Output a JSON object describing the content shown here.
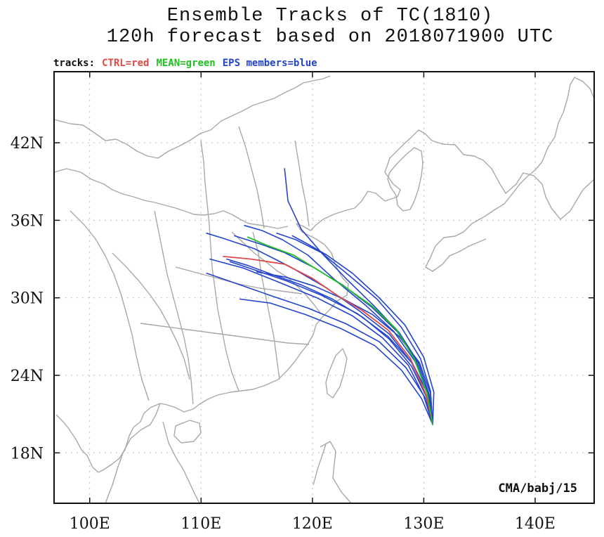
{
  "title_line1": "Ensemble Tracks of TC(1810)",
  "title_line2": "120h forecast based on 2018071900 UTC",
  "legend": {
    "label": "tracks:",
    "ctrl": "CTRL=red",
    "mean": "MEAN=green",
    "eps": "EPS members=blue"
  },
  "colors": {
    "ctrl": "#e04848",
    "mean": "#22c022",
    "eps": "#2244cc",
    "coast": "#a8a8a8",
    "grid": "#bbbbbb"
  },
  "credit": "CMA/babj/15",
  "map": {
    "lon_range": [
      96.8,
      145.3
    ],
    "lat_range": [
      14.1,
      47.5
    ],
    "lon_ticks": [
      100,
      110,
      120,
      130,
      140
    ],
    "lon_tick_labels": [
      "100E",
      "110E",
      "120E",
      "130E",
      "140E"
    ],
    "lat_ticks": [
      18,
      24,
      30,
      36,
      42
    ],
    "lat_tick_labels": [
      "18N",
      "24N",
      "30N",
      "36N",
      "42N"
    ]
  },
  "tracks": {
    "ctrl": [
      [
        130.8,
        20.2
      ],
      [
        130.2,
        22.5
      ],
      [
        128.8,
        25.3
      ],
      [
        126.8,
        27.5
      ],
      [
        124.5,
        29.0
      ],
      [
        122.2,
        30.2
      ],
      [
        120.0,
        31.5
      ],
      [
        117.5,
        32.6
      ],
      [
        114.5,
        33.0
      ],
      [
        112.0,
        33.2
      ]
    ],
    "mean": [
      [
        130.8,
        20.2
      ],
      [
        130.3,
        22.6
      ],
      [
        129.2,
        25.2
      ],
      [
        127.5,
        27.6
      ],
      [
        125.3,
        29.4
      ],
      [
        123.0,
        30.8
      ],
      [
        120.6,
        32.1
      ],
      [
        118.3,
        33.3
      ],
      [
        115.8,
        34.1
      ],
      [
        114.2,
        34.7
      ]
    ],
    "eps": [
      [
        [
          130.8,
          20.2
        ],
        [
          130.5,
          22.5
        ],
        [
          129.5,
          25.0
        ],
        [
          127.8,
          27.3
        ],
        [
          125.5,
          29.4
        ],
        [
          123.0,
          31.5
        ],
        [
          120.8,
          33.5
        ],
        [
          119.0,
          35.3
        ],
        [
          117.8,
          37.5
        ],
        [
          117.5,
          40.0
        ]
      ],
      [
        [
          130.8,
          20.2
        ],
        [
          130.4,
          22.6
        ],
        [
          129.2,
          25.1
        ],
        [
          127.3,
          27.4
        ],
        [
          124.8,
          29.4
        ],
        [
          122.0,
          31.4
        ],
        [
          119.6,
          33.3
        ],
        [
          117.3,
          34.5
        ],
        [
          115.5,
          35.2
        ],
        [
          113.9,
          35.6
        ]
      ],
      [
        [
          130.8,
          20.2
        ],
        [
          130.2,
          22.5
        ],
        [
          128.9,
          25.0
        ],
        [
          126.9,
          27.2
        ],
        [
          124.2,
          29.0
        ],
        [
          121.2,
          30.8
        ],
        [
          118.0,
          32.4
        ],
        [
          114.8,
          33.8
        ],
        [
          112.0,
          34.6
        ],
        [
          110.5,
          35.0
        ]
      ],
      [
        [
          130.8,
          20.2
        ],
        [
          130.0,
          22.4
        ],
        [
          128.6,
          24.8
        ],
        [
          126.3,
          26.9
        ],
        [
          123.6,
          28.6
        ],
        [
          120.4,
          30.0
        ],
        [
          117.0,
          31.2
        ],
        [
          113.8,
          32.3
        ],
        [
          110.8,
          33.0
        ]
      ],
      [
        [
          130.8,
          20.2
        ],
        [
          130.1,
          22.3
        ],
        [
          128.4,
          24.6
        ],
        [
          126.0,
          26.6
        ],
        [
          123.0,
          28.0
        ],
        [
          119.6,
          29.2
        ],
        [
          116.5,
          30.1
        ],
        [
          113.5,
          31.0
        ],
        [
          110.5,
          31.9
        ]
      ],
      [
        [
          130.8,
          20.2
        ],
        [
          129.8,
          22.2
        ],
        [
          128.0,
          24.4
        ],
        [
          125.6,
          26.3
        ],
        [
          122.6,
          27.6
        ],
        [
          119.4,
          28.7
        ],
        [
          116.2,
          29.6
        ],
        [
          113.5,
          29.9
        ]
      ],
      [
        [
          130.8,
          20.2
        ],
        [
          130.6,
          22.8
        ],
        [
          129.7,
          25.3
        ],
        [
          128.0,
          27.7
        ],
        [
          125.8,
          29.9
        ],
        [
          123.2,
          31.8
        ],
        [
          120.8,
          33.5
        ],
        [
          118.5,
          34.5
        ],
        [
          116.8,
          35.0
        ]
      ],
      [
        [
          130.8,
          20.2
        ],
        [
          130.4,
          22.5
        ],
        [
          129.0,
          24.9
        ],
        [
          126.8,
          27.0
        ],
        [
          124.0,
          28.8
        ],
        [
          120.8,
          30.2
        ],
        [
          117.7,
          31.3
        ],
        [
          115.0,
          32.1
        ],
        [
          112.6,
          32.8
        ]
      ],
      [
        [
          130.8,
          20.2
        ],
        [
          130.9,
          22.7
        ],
        [
          130.0,
          25.4
        ],
        [
          128.3,
          27.9
        ],
        [
          126.0,
          30.0
        ],
        [
          123.6,
          31.9
        ],
        [
          121.3,
          33.3
        ],
        [
          119.5,
          34.2
        ],
        [
          118.2,
          34.8
        ]
      ],
      [
        [
          130.8,
          20.2
        ],
        [
          130.3,
          22.7
        ],
        [
          129.3,
          25.2
        ],
        [
          127.6,
          27.4
        ],
        [
          125.3,
          29.3
        ],
        [
          122.7,
          31.0
        ],
        [
          120.0,
          32.4
        ],
        [
          117.5,
          33.5
        ],
        [
          115.2,
          34.2
        ],
        [
          113.0,
          34.8
        ]
      ],
      [
        [
          130.8,
          20.2
        ],
        [
          130.6,
          22.6
        ],
        [
          129.6,
          25.0
        ],
        [
          127.8,
          27.0
        ],
        [
          125.4,
          28.7
        ],
        [
          122.8,
          29.9
        ],
        [
          120.2,
          30.9
        ],
        [
          117.6,
          31.6
        ],
        [
          115.0,
          32.0
        ]
      ],
      [
        [
          130.8,
          20.2
        ],
        [
          130.2,
          22.4
        ],
        [
          128.9,
          24.7
        ],
        [
          126.9,
          26.8
        ],
        [
          124.5,
          28.5
        ],
        [
          121.8,
          29.9
        ],
        [
          119.0,
          31.0
        ],
        [
          116.4,
          31.8
        ],
        [
          114.2,
          32.5
        ],
        [
          112.3,
          33.0
        ]
      ]
    ]
  }
}
